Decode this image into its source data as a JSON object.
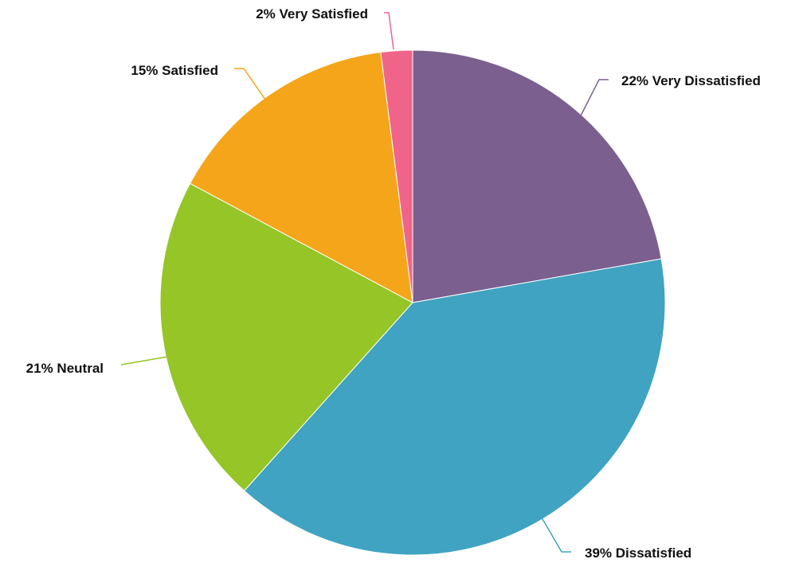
{
  "chart_data": {
    "type": "pie",
    "title": "",
    "slices": [
      {
        "name": "Very Dissatisfied",
        "value": 22,
        "label": "22% Very Dissatisfied",
        "color": "#7b5f8f"
      },
      {
        "name": "Dissatisfied",
        "value": 39,
        "label": "39% Dissatisfied",
        "color": "#3fa3c1"
      },
      {
        "name": "Neutral",
        "value": 21,
        "label": "21% Neutral",
        "color": "#95c526"
      },
      {
        "name": "Satisfied",
        "value": 15,
        "label": "15% Satisfied",
        "color": "#f5a51a"
      },
      {
        "name": "Very Satisfied",
        "value": 2,
        "label": "2% Very Satisfied",
        "color": "#f0648a"
      }
    ],
    "start": "top, clockwise",
    "legend": "none"
  }
}
